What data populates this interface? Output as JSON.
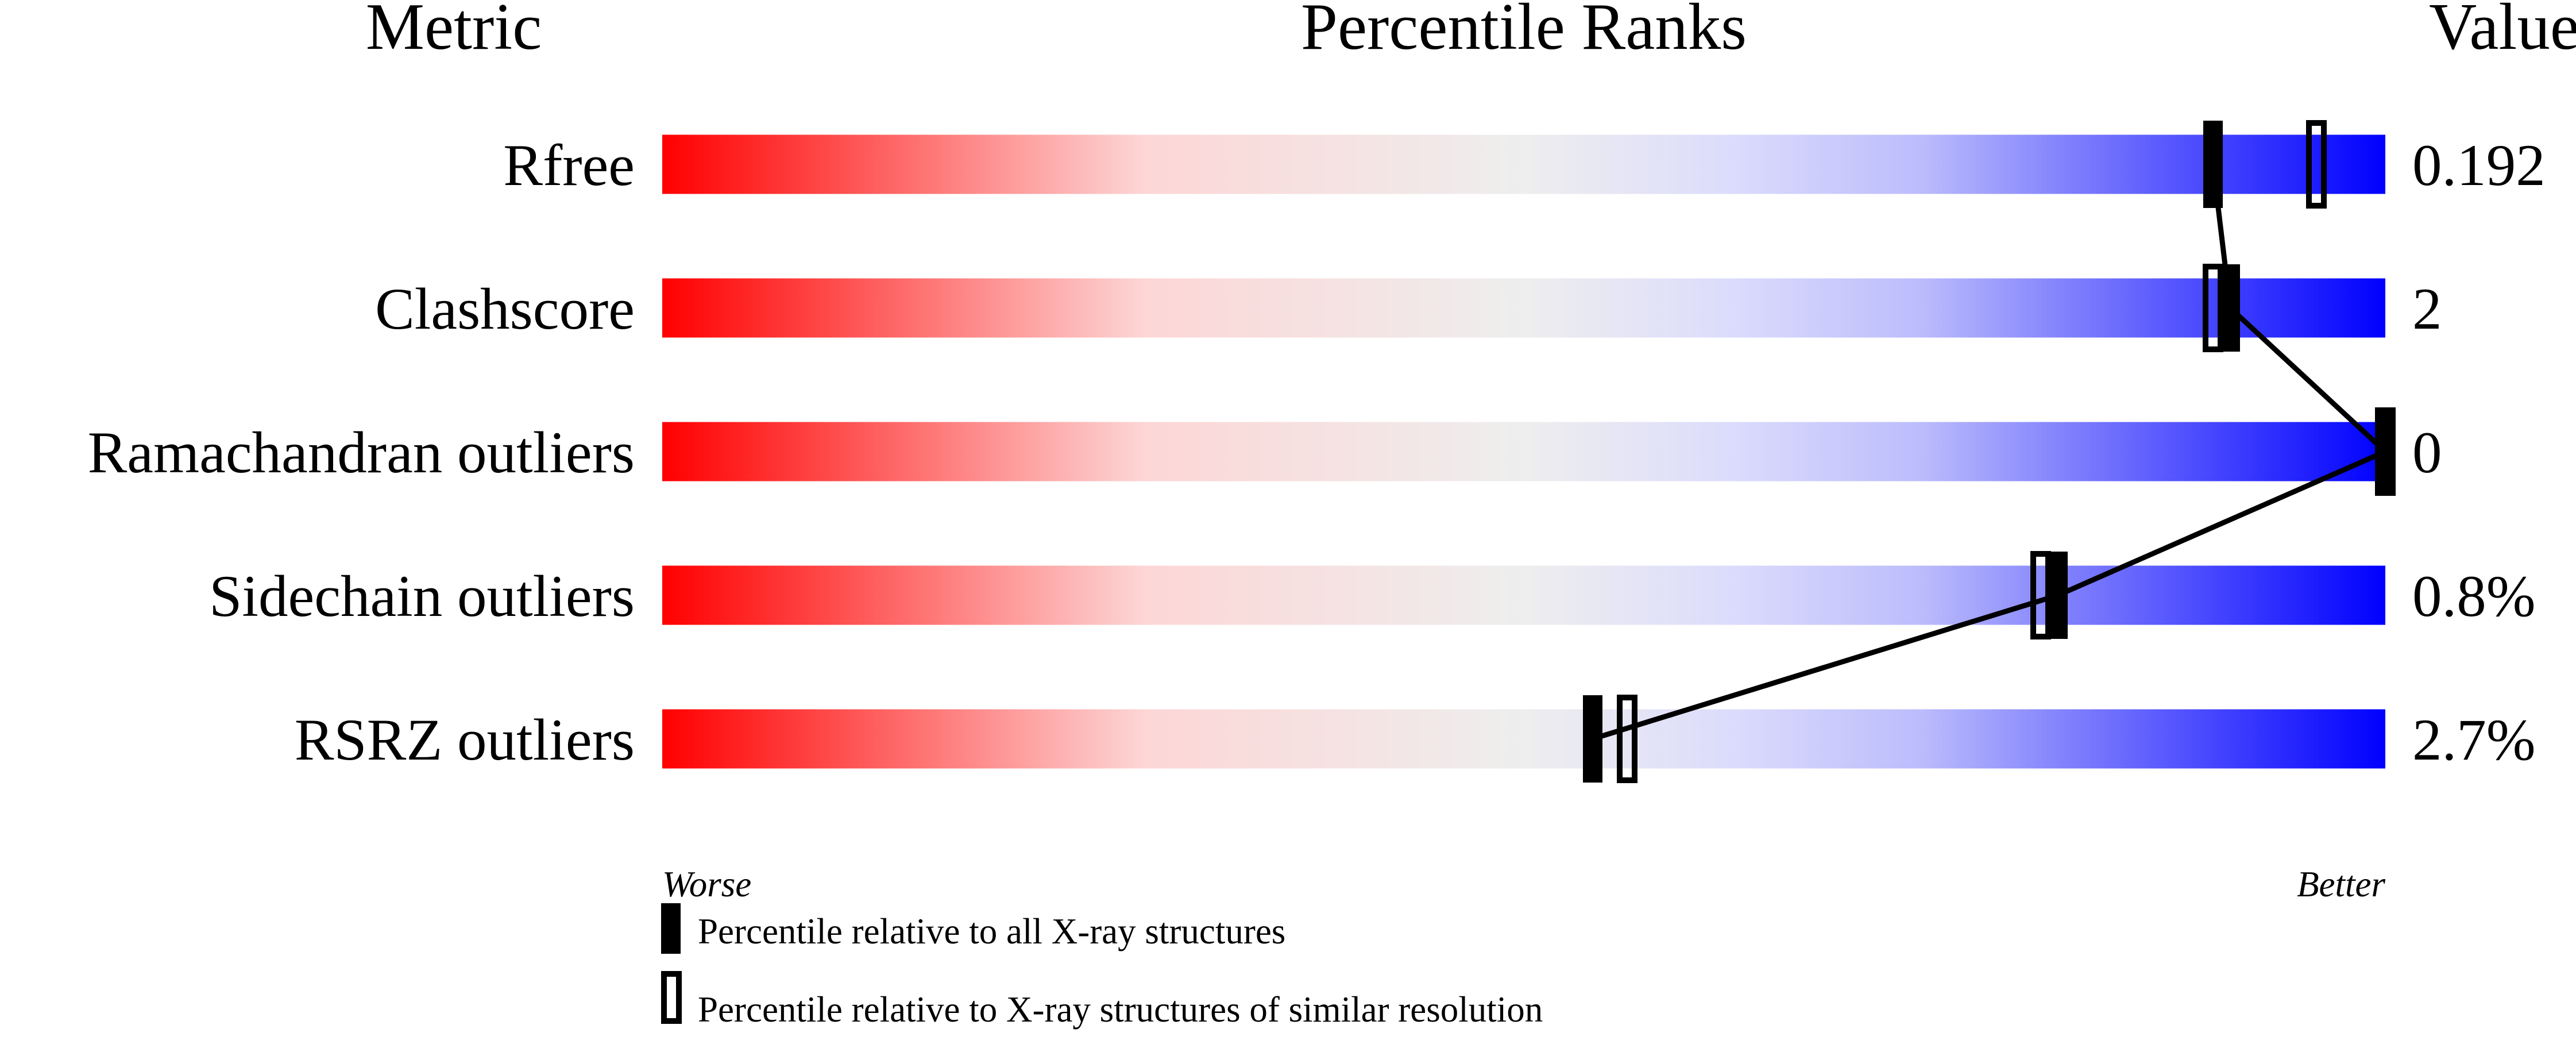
{
  "chart_data": {
    "type": "percentile-slider",
    "headers": {
      "metric": "Metric",
      "ranks": "Percentile Ranks",
      "value": "Value"
    },
    "xlim": [
      0,
      100
    ],
    "axis_labels": {
      "left": "Worse",
      "right": "Better"
    },
    "gradient_colors": [
      "#ff0000",
      "#fdd6d6",
      "#eeeeee",
      "#dcdcfc",
      "#0000ff"
    ],
    "metrics": [
      {
        "name": "Rfree",
        "value": "0.192",
        "percentile_all": 90,
        "percentile_similar": 96
      },
      {
        "name": "Clashscore",
        "value": "2",
        "percentile_all": 91,
        "percentile_similar": 90
      },
      {
        "name": "Ramachandran outliers",
        "value": "0",
        "percentile_all": 100,
        "percentile_similar": 100
      },
      {
        "name": "Sidechain outliers",
        "value": "0.8%",
        "percentile_all": 81,
        "percentile_similar": 80
      },
      {
        "name": "RSRZ outliers",
        "value": "2.7%",
        "percentile_all": 54,
        "percentile_similar": 56
      }
    ],
    "legend": [
      {
        "marker": "filled",
        "label": "Percentile relative to all X-ray structures"
      },
      {
        "marker": "open",
        "label": "Percentile relative to X-ray structures of similar resolution"
      }
    ]
  }
}
